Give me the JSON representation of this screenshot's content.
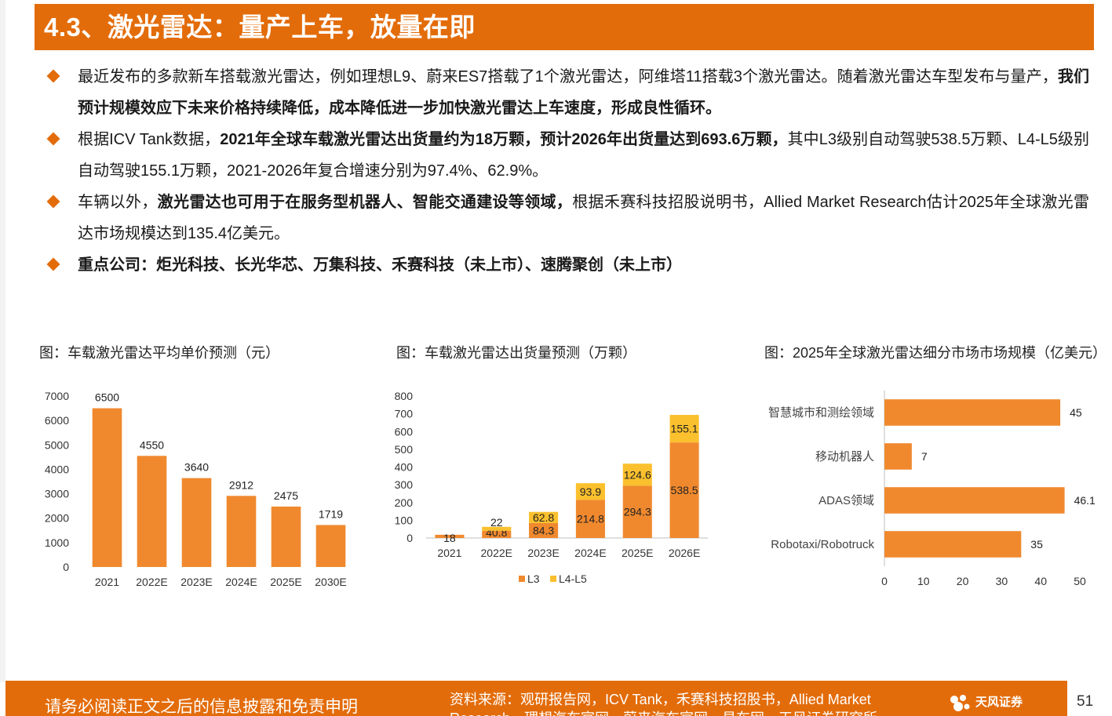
{
  "title": "4.3、激光雷达：量产上车，放量在即",
  "bullets": [
    {
      "pre": "最近发布的多款新车搭载激光雷达，例如理想L9、蔚来ES7搭载了1个激光雷达，阿维塔11搭载3个激光雷达。随着激光雷达车型发布与量产，",
      "bold": "我们预计规模效应下未来价格持续降低，成本降低进一步加快激光雷达上车速度，形成良性循环。",
      "post": ""
    },
    {
      "pre": "根据ICV Tank数据，",
      "bold": "2021年全球车载激光雷达出货量约为18万颗，预计2026年出货量达到693.6万颗，",
      "post": "其中L3级别自动驾驶538.5万颗、L4-L5级别自动驾驶155.1万颗，2021-2026年复合增速分别为97.4%、62.9%。"
    },
    {
      "pre": "车辆以外，",
      "bold": "激光雷达也可用于在服务型机器人、智能交通建设等领域，",
      "post": "根据禾赛科技招股说明书，Allied Market Research估计2025年全球激光雷达市场规模达到135.4亿美元。"
    },
    {
      "pre": "",
      "bold": "重点公司：炬光科技、长光华芯、万集科技、禾赛科技（未上市）、速腾聚创（未上市）",
      "post": ""
    }
  ],
  "captions": {
    "chart1": "图：车载激光雷达平均单价预测（元）",
    "chart2": "图：车载激光雷达出货量预测（万颗）",
    "chart3": "图：2025年全球激光雷达细分市场市场规模（亿美元）"
  },
  "chart_data": [
    {
      "type": "bar",
      "title": "图：车载激光雷达平均单价预测（元）",
      "categories": [
        "2021",
        "2022E",
        "2023E",
        "2024E",
        "2025E",
        "2030E"
      ],
      "values": [
        6500,
        4550,
        3640,
        2912,
        2475,
        1719
      ],
      "yticks": [
        0,
        1000,
        2000,
        3000,
        4000,
        5000,
        6000,
        7000
      ],
      "ylim": [
        0,
        7000
      ],
      "color": "#f0892e",
      "grid": false
    },
    {
      "type": "bar",
      "stacked": true,
      "title": "图：车载激光雷达出货量预测（万颗）",
      "categories": [
        "2021",
        "2022E",
        "2023E",
        "2024E",
        "2025E",
        "2026E"
      ],
      "series": [
        {
          "name": "L3",
          "values": [
            18,
            40.8,
            84.3,
            214.8,
            294.3,
            538.5
          ],
          "color": "#f0892e"
        },
        {
          "name": "L4-L5",
          "values": [
            0,
            22,
            62.8,
            93.9,
            124.6,
            155.1
          ],
          "color": "#fbc02d"
        }
      ],
      "labels": [
        [
          "18",
          "40.8",
          "84.3",
          "214.8",
          "294.3",
          "538.5"
        ],
        [
          "",
          "22",
          "62.8",
          "93.9",
          "124.6",
          "155.1"
        ]
      ],
      "yticks": [
        0,
        100,
        200,
        300,
        400,
        500,
        600,
        700,
        800
      ],
      "ylim": [
        0,
        800
      ],
      "legend": "bottom",
      "grid": false
    },
    {
      "type": "bar",
      "orientation": "horizontal",
      "title": "图：2025年全球激光雷达细分市场市场规模（亿美元）",
      "categories": [
        "智慧城市和测绘领域",
        "移动机器人",
        "ADAS领域",
        "Robotaxi/Robotruck"
      ],
      "values": [
        45,
        7,
        46.1,
        35
      ],
      "labels": [
        "45",
        "7",
        "46.1",
        "35"
      ],
      "xticks": [
        0,
        10,
        20,
        30,
        40,
        50
      ],
      "xlim": [
        0,
        50
      ],
      "color": "#f0892e",
      "grid": false
    }
  ],
  "footer": {
    "notice": "请务必阅读正文之后的信息披露和免责申明",
    "source": "资料来源：观研报告网，ICV Tank，禾赛科技招股书，Allied Market Research，理想汽车官网，蔚来汽车官网，易车网，天风证券研究所",
    "logo_text": "天风证券",
    "page": "51"
  },
  "colors": {
    "accent": "#e36c0a",
    "bar": "#f0892e",
    "bar_secondary": "#fbc02d"
  }
}
